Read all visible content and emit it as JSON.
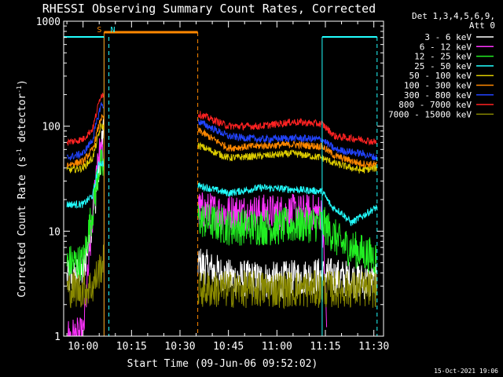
{
  "chart_data": {
    "type": "line",
    "title": "RHESSI Observing Summary Count Rates, Corrected",
    "xlabel": "Start Time (09-Jun-06 09:52:02)",
    "ylabel_main": "Corrected Count Rate (s",
    "ylabel_sup1": "-1",
    "ylabel_mid": " detector",
    "ylabel_sup2": "-1",
    "ylabel_end": ")",
    "y_scale": "log",
    "ylim": [
      1,
      1000
    ],
    "xlim_minutes": [
      -6,
      93
    ],
    "x_tick_labels": [
      "10:00",
      "10:15",
      "10:30",
      "10:45",
      "11:00",
      "11:15",
      "11:30"
    ],
    "x_tick_minutes": [
      0,
      15,
      30,
      45,
      60,
      75,
      90
    ],
    "y_tick_labels": [
      "1",
      "10",
      "100",
      "1000"
    ],
    "y_tick_values": [
      1,
      10,
      100,
      1000
    ],
    "legend_header": [
      "Det 1,3,4,5,6,9,",
      "Att 0"
    ],
    "legend_position": "right",
    "gaps_minutes": [
      [
        6.5,
        35.5
      ]
    ],
    "series": [
      {
        "name": "3 - 6 keV",
        "color": "#ffffff",
        "x": [
          -5,
          0,
          3,
          4.5,
          6,
          36,
          45,
          60,
          75,
          91
        ],
        "values": [
          3.5,
          4,
          14,
          30,
          80,
          4.8,
          3.6,
          3.4,
          3.8,
          3.2
        ]
      },
      {
        "name": "6 - 12 keV",
        "color": "#ff33ff",
        "x": [
          -5,
          0,
          3,
          4.5,
          36,
          45,
          60,
          74,
          75.5
        ],
        "values": [
          1,
          1,
          14,
          55,
          16,
          15,
          15,
          15,
          1
        ]
      },
      {
        "name": "12 - 25 keV",
        "color": "#22ee22",
        "x": [
          -5,
          0,
          3,
          5,
          36,
          45,
          60,
          74,
          80,
          91
        ],
        "values": [
          5,
          5,
          16,
          42,
          13,
          11,
          11,
          12,
          7.5,
          5.5
        ]
      },
      {
        "name": "25 - 50 keV",
        "color": "#22ffff",
        "x": [
          -5,
          0,
          3,
          5,
          36,
          45,
          55,
          65,
          74,
          77,
          80,
          83,
          91
        ],
        "values": [
          18,
          18,
          22,
          45,
          27,
          23,
          26,
          25,
          24,
          17,
          15,
          12,
          17
        ]
      },
      {
        "name": "50 - 100 keV",
        "color": "#ddcc00",
        "x": [
          -5,
          0,
          3,
          5.5,
          36,
          45,
          55,
          65,
          74,
          78,
          86,
          91
        ],
        "values": [
          38,
          40,
          50,
          100,
          65,
          50,
          52,
          55,
          50,
          44,
          38,
          40
        ]
      },
      {
        "name": "100 - 300 keV",
        "color": "#ff8800",
        "x": [
          -5,
          0,
          3,
          5.5,
          36,
          45,
          55,
          65,
          74,
          78,
          86,
          91
        ],
        "values": [
          43,
          46,
          60,
          120,
          90,
          62,
          65,
          67,
          64,
          52,
          44,
          43
        ]
      },
      {
        "name": "300 - 800 keV",
        "color": "#2244ff",
        "x": [
          -5,
          0,
          3,
          5.5,
          36,
          45,
          55,
          65,
          74,
          78,
          86,
          91
        ],
        "values": [
          50,
          55,
          75,
          160,
          110,
          80,
          75,
          77,
          75,
          60,
          55,
          50
        ]
      },
      {
        "name": "800 - 7000 keV",
        "color": "#ff2222",
        "x": [
          -5,
          0,
          3,
          5.5,
          36,
          45,
          55,
          65,
          74,
          78,
          86,
          91
        ],
        "values": [
          70,
          75,
          95,
          200,
          130,
          100,
          100,
          110,
          105,
          80,
          75,
          70
        ]
      },
      {
        "name": "7000 - 15000 keV",
        "color": "#888800",
        "x": [
          -5,
          0,
          3,
          6,
          36,
          45,
          60,
          75,
          91
        ],
        "values": [
          2.8,
          2.8,
          3,
          5,
          2.8,
          2.8,
          2.8,
          2.8,
          2.8
        ]
      }
    ],
    "annotations": [
      {
        "label": "S",
        "color": "#ff8800",
        "x_minute": 6.5
      },
      {
        "label": "N",
        "color": "#22ffff",
        "x_minute": 8
      }
    ],
    "orange_bar_minutes": [
      6.5,
      35.5
    ],
    "cyan_lines_minutes": [
      -6,
      6.5,
      8,
      74,
      91
    ],
    "orange_dashed_minutes": [
      35.5
    ],
    "footer_date": "15-Oct-2021 19:06"
  }
}
